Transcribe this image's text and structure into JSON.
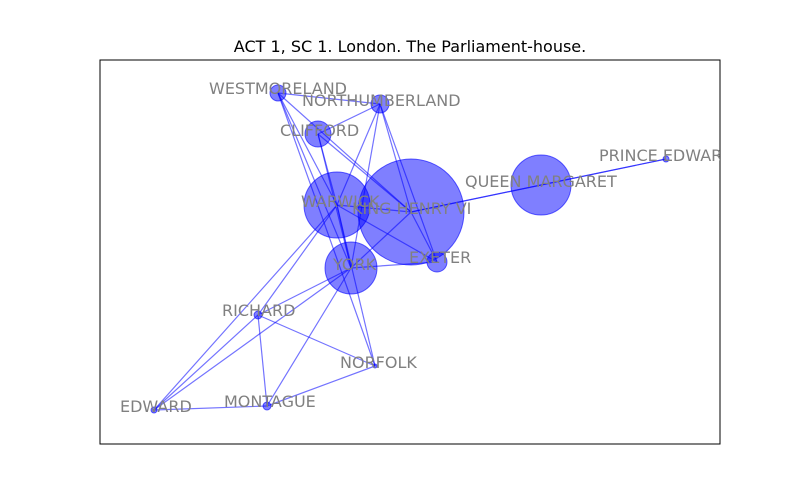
{
  "title": "ACT 1, SC 1. London. The Parliament-house.",
  "colors": {
    "node_fill": "#0000ff",
    "node_stroke": "#0000ff",
    "edge": "#0000ff",
    "label": "#808080",
    "frame": "#000000"
  },
  "nodes": [
    {
      "id": "king-henry-vi",
      "label": "KING HENRY VI"
    },
    {
      "id": "queen-margaret",
      "label": "QUEEN MARGARET"
    },
    {
      "id": "warwick",
      "label": "WARWICK"
    },
    {
      "id": "york",
      "label": "YORK"
    },
    {
      "id": "clifford",
      "label": "CLIFFORD"
    },
    {
      "id": "westmoreland",
      "label": "WESTMORELAND"
    },
    {
      "id": "northumberland",
      "label": "NORTHUMBERLAND"
    },
    {
      "id": "exeter",
      "label": "EXETER"
    },
    {
      "id": "prince-edward",
      "label": "PRINCE EDWARD"
    },
    {
      "id": "richard",
      "label": "RICHARD"
    },
    {
      "id": "norfolk",
      "label": "NORFOLK"
    },
    {
      "id": "edward",
      "label": "EDWARD"
    },
    {
      "id": "montague",
      "label": "MONTAGUE"
    }
  ],
  "edges": [
    [
      "king-henry-vi",
      "queen-margaret"
    ],
    [
      "king-henry-vi",
      "prince-edward"
    ],
    [
      "queen-margaret",
      "prince-edward"
    ],
    [
      "king-henry-vi",
      "warwick"
    ],
    [
      "king-henry-vi",
      "york"
    ],
    [
      "king-henry-vi",
      "exeter"
    ],
    [
      "king-henry-vi",
      "clifford"
    ],
    [
      "king-henry-vi",
      "westmoreland"
    ],
    [
      "king-henry-vi",
      "northumberland"
    ],
    [
      "warwick",
      "york"
    ],
    [
      "warwick",
      "clifford"
    ],
    [
      "warwick",
      "westmoreland"
    ],
    [
      "warwick",
      "northumberland"
    ],
    [
      "warwick",
      "exeter"
    ],
    [
      "warwick",
      "norfolk"
    ],
    [
      "warwick",
      "richard"
    ],
    [
      "warwick",
      "edward"
    ],
    [
      "york",
      "exeter"
    ],
    [
      "york",
      "clifford"
    ],
    [
      "york",
      "northumberland"
    ],
    [
      "york",
      "richard"
    ],
    [
      "york",
      "edward"
    ],
    [
      "york",
      "montague"
    ],
    [
      "york",
      "westmoreland"
    ],
    [
      "clifford",
      "northumberland"
    ],
    [
      "westmoreland",
      "northumberland"
    ],
    [
      "westmoreland",
      "norfolk"
    ],
    [
      "richard",
      "edward"
    ],
    [
      "richard",
      "montague"
    ],
    [
      "richard",
      "norfolk"
    ],
    [
      "edward",
      "montague"
    ],
    [
      "montague",
      "norfolk"
    ],
    [
      "northumberland",
      "exeter"
    ]
  ]
}
